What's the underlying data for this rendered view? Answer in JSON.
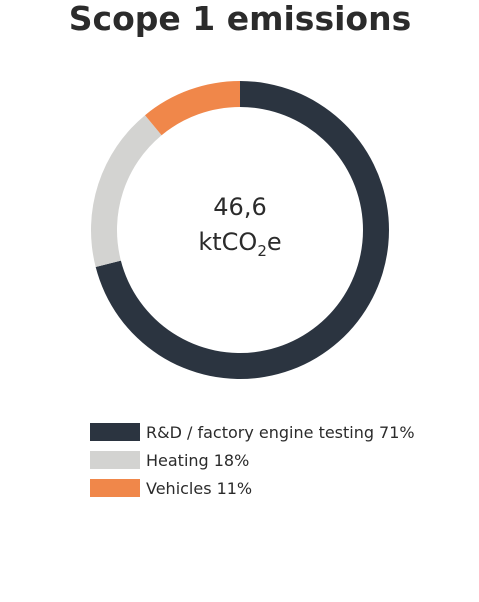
{
  "chart_data": {
    "type": "pie",
    "title": "Scope 1 emissions",
    "categories": [
      "R&D / factory engine testing",
      "Heating",
      "Vehicles"
    ],
    "values": [
      71,
      18,
      11
    ],
    "value_labels": [
      "71%",
      "18%",
      "11%"
    ],
    "colors": [
      "#2b3440",
      "#d3d3d1",
      "#f0874a"
    ],
    "center_label": "46,6",
    "center_unit": {
      "main": "ktCO",
      "sub": "2",
      "end": "e"
    }
  }
}
